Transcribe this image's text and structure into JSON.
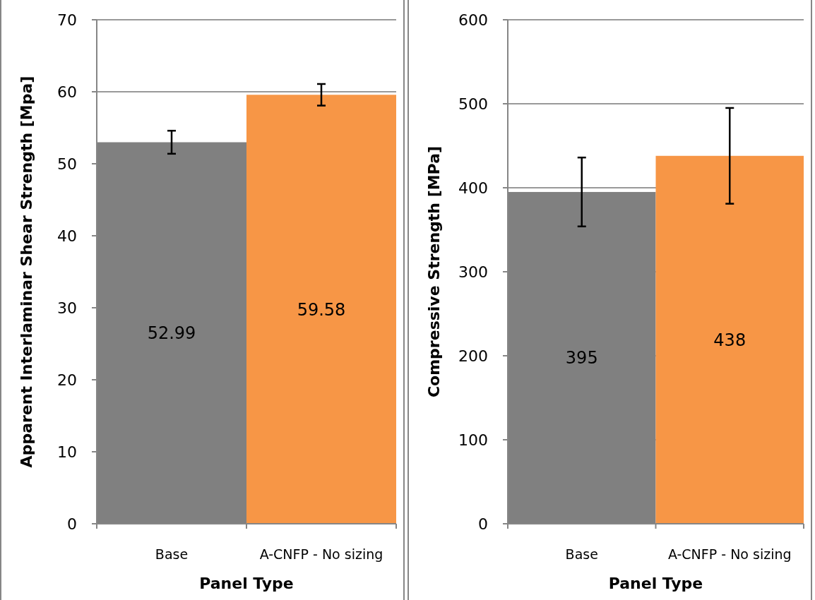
{
  "chart_data": [
    {
      "type": "bar",
      "xlabel": "Panel Type",
      "ylabel": "Apparent Interlaminar Shear Strength [Mpa]",
      "categories": [
        "Base",
        "A-CNFP - No sizing"
      ],
      "values": [
        52.99,
        59.58
      ],
      "colors": [
        "#808080",
        "#f79646"
      ],
      "errors": [
        1.6,
        1.5
      ],
      "data_labels": true,
      "ylim": [
        0,
        70
      ],
      "yticks": [
        0,
        10,
        20,
        30,
        40,
        50,
        60,
        70
      ],
      "grid": "y"
    },
    {
      "type": "bar",
      "xlabel": "Panel Type",
      "ylabel": "Compressive Strength [MPa]",
      "categories": [
        "Base",
        "A-CNFP - No sizing"
      ],
      "values": [
        395,
        438
      ],
      "colors": [
        "#808080",
        "#f79646"
      ],
      "errors": [
        41,
        57
      ],
      "data_labels": true,
      "ylim": [
        0,
        600
      ],
      "yticks": [
        0,
        100,
        200,
        300,
        400,
        500,
        600
      ],
      "grid": "y"
    }
  ]
}
